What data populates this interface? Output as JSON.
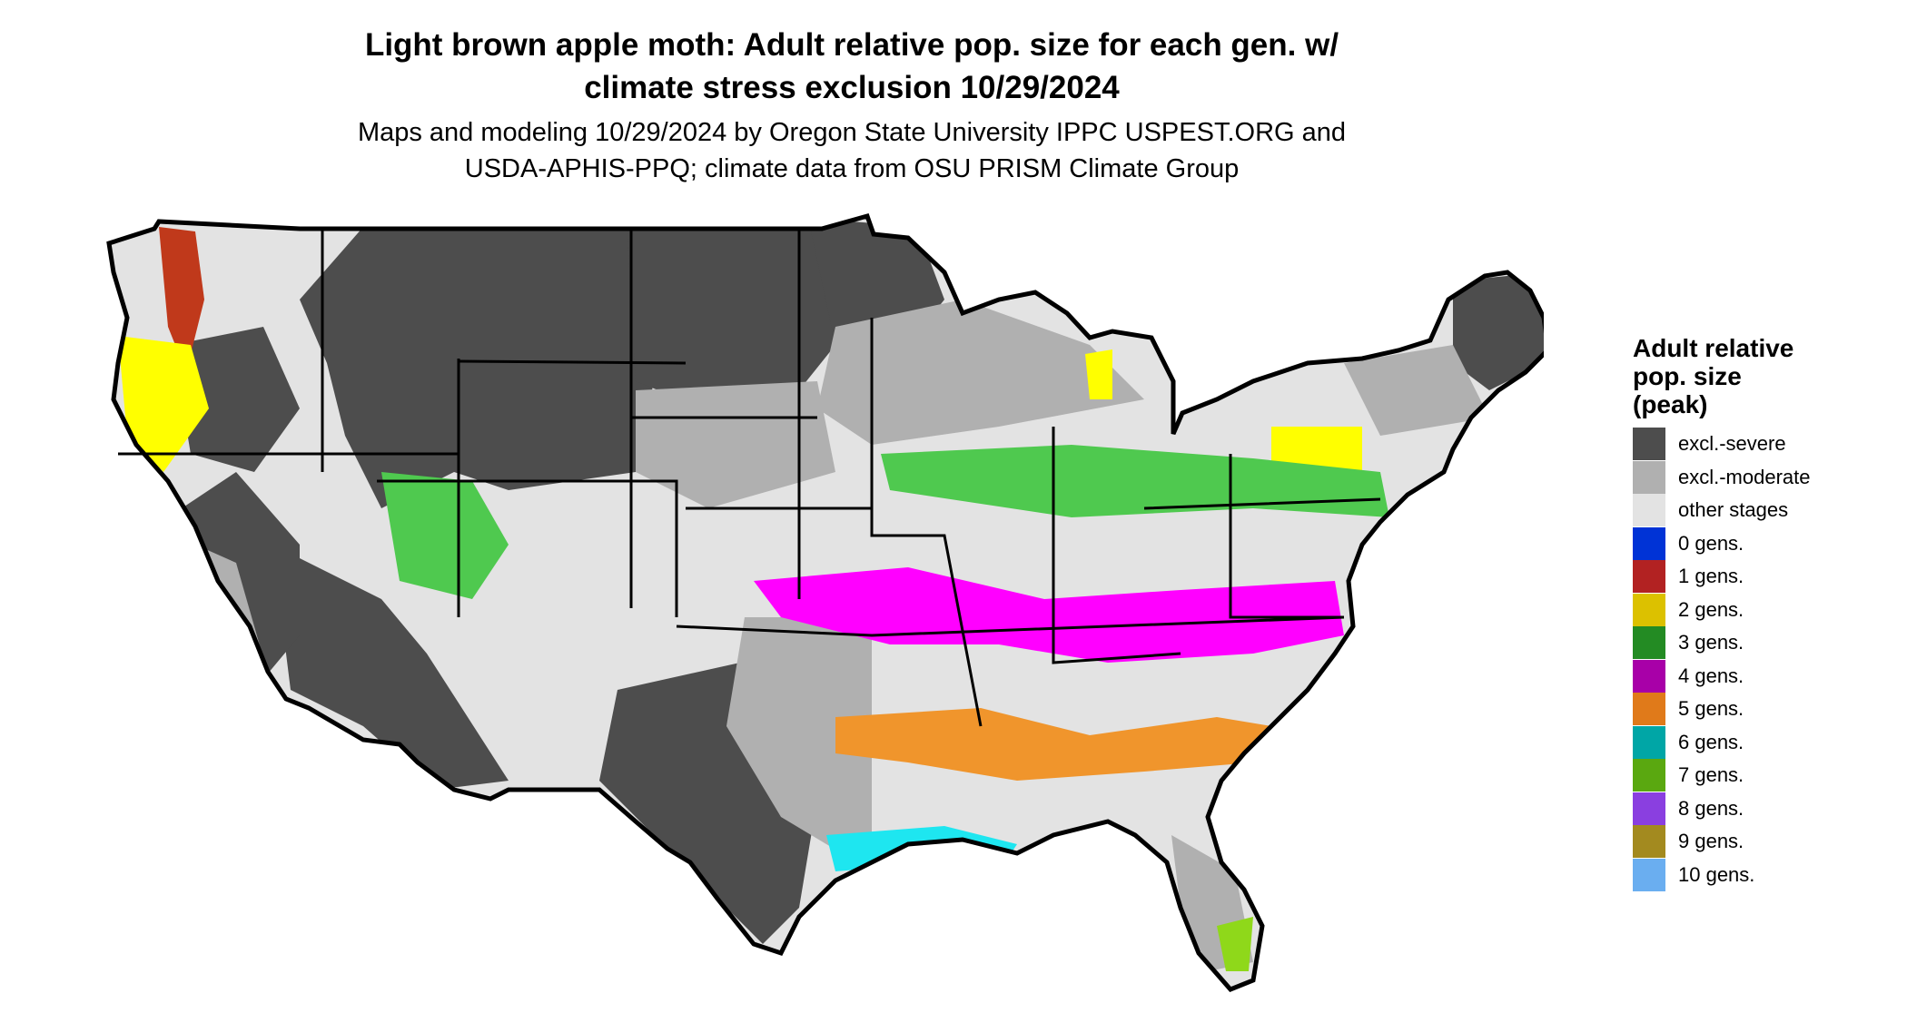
{
  "title_line1": "Light brown apple moth: Adult relative pop. size for each gen. w/",
  "title_line2": "climate stress exclusion 10/29/2024",
  "subtitle_line1": "Maps and modeling 10/29/2024 by Oregon State University IPPC USPEST.ORG and",
  "subtitle_line2": "USDA-APHIS-PPQ; climate data from OSU PRISM Climate Group",
  "legend": {
    "title_line1": "Adult relative",
    "title_line2": "pop. size",
    "title_line3": "(peak)",
    "items": [
      {
        "label": "excl.-severe",
        "color": "#4d4d4d"
      },
      {
        "label": "excl.-moderate",
        "color": "#b0b0b0"
      },
      {
        "label": "other stages",
        "color": "#e3e3e3"
      },
      {
        "label": "0 gens.",
        "color": "#0033d6"
      },
      {
        "label": "1 gens.",
        "color": "#b22222"
      },
      {
        "label": "2 gens.",
        "color": "#dcc100"
      },
      {
        "label": "3 gens.",
        "color": "#238b23"
      },
      {
        "label": "4 gens.",
        "color": "#a800a8"
      },
      {
        "label": "5 gens.",
        "color": "#e07a1a"
      },
      {
        "label": "6 gens.",
        "color": "#00a6a6"
      },
      {
        "label": "7 gens.",
        "color": "#5aa810"
      },
      {
        "label": "8 gens.",
        "color": "#8a3fe0"
      },
      {
        "label": "9 gens.",
        "color": "#a38a1f"
      },
      {
        "label": "10 gens.",
        "color": "#6aaef0"
      }
    ]
  },
  "map_colors": {
    "severe": "#4d4d4d",
    "moderate": "#b0b0b0",
    "other": "#e3e3e3",
    "gen1": "#c0391b",
    "gen2": "#ffff00",
    "gen3": "#4fc94f",
    "gen4": "#ff00ff",
    "gen5": "#f0952c",
    "gen6": "#1ee6f0",
    "gen7": "#8fd81a"
  }
}
